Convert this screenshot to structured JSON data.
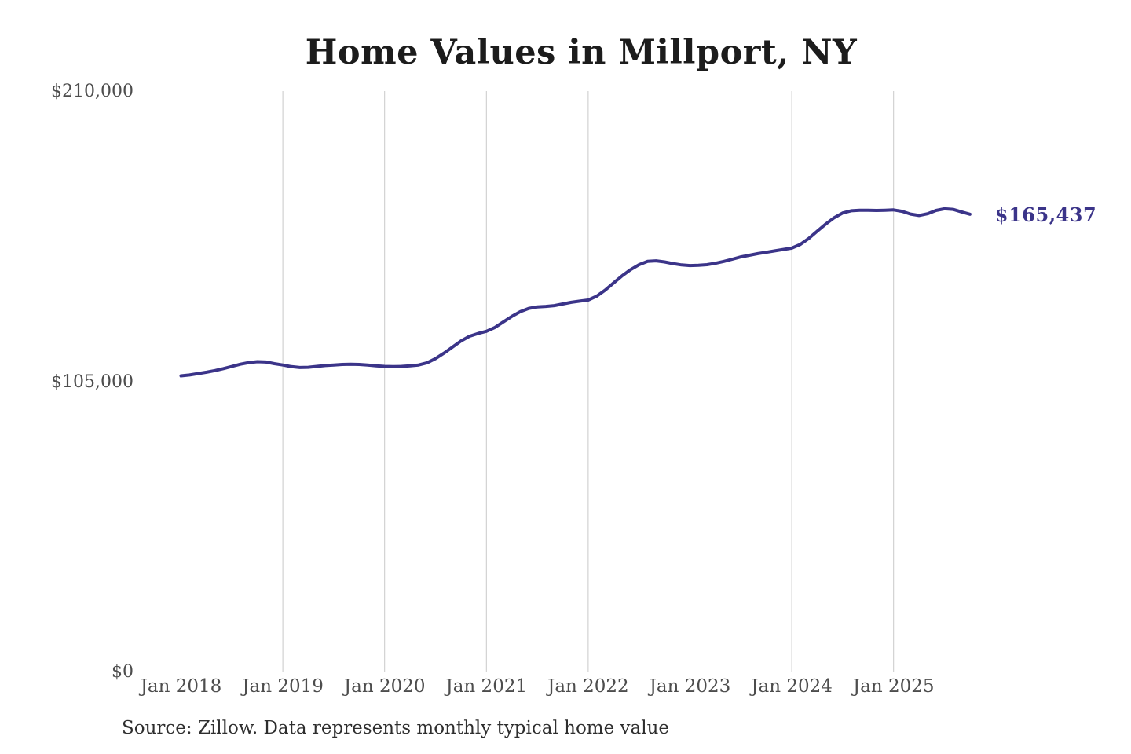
{
  "title": "Home Values in Millport, NY",
  "source_note": "Source: Zillow. Data represents monthly typical home value",
  "end_label": "$165,437",
  "colors": {
    "line": "#3b3489",
    "grid": "#c9c9c9",
    "axis_text": "#4d4d4d",
    "title_text": "#1c1c1c",
    "source_text": "#2e2e2e",
    "end_label_text": "#3b3489",
    "background": "#ffffff"
  },
  "y_axis": {
    "tick_labels": [
      "$0",
      "$105,000",
      "$210,000"
    ],
    "tick_values": [
      0,
      105000,
      210000
    ]
  },
  "x_axis": {
    "tick_labels": [
      "Jan 2018",
      "Jan 2019",
      "Jan 2020",
      "Jan 2021",
      "Jan 2022",
      "Jan 2023",
      "Jan 2024",
      "Jan 2025"
    ]
  },
  "chart_data": {
    "type": "line",
    "title": "Home Values in Millport, NY",
    "xlabel": "",
    "ylabel": "",
    "ylim": [
      0,
      210000
    ],
    "yticks": [
      0,
      105000,
      210000
    ],
    "xticks": [
      "Jan 2018",
      "Jan 2019",
      "Jan 2020",
      "Jan 2021",
      "Jan 2022",
      "Jan 2023",
      "Jan 2024",
      "Jan 2025"
    ],
    "grid": "vertical-only",
    "legend": "none",
    "series_name": "Typical home value (monthly)",
    "x_start_month": "2018-01",
    "x_end_month": "2025-10",
    "final_value": 165437,
    "values": [
      107000,
      107300,
      107800,
      108300,
      108900,
      109600,
      110400,
      111200,
      111800,
      112100,
      112000,
      111400,
      110900,
      110300,
      110000,
      110100,
      110400,
      110700,
      110900,
      111100,
      111200,
      111100,
      110900,
      110600,
      110400,
      110300,
      110400,
      110600,
      110900,
      111700,
      113200,
      115200,
      117400,
      119600,
      121300,
      122300,
      123100,
      124500,
      126500,
      128500,
      130200,
      131400,
      131900,
      132100,
      132400,
      133000,
      133600,
      134000,
      134400,
      135800,
      138000,
      140600,
      143200,
      145400,
      147200,
      148400,
      148600,
      148200,
      147600,
      147100,
      146900,
      147000,
      147200,
      147700,
      148400,
      149200,
      150000,
      150600,
      151200,
      151700,
      152200,
      152700,
      153200,
      154500,
      156700,
      159300,
      161900,
      164200,
      165900,
      166700,
      166900,
      166900,
      166800,
      166900,
      167000,
      166500,
      165500,
      165000,
      165600,
      166800,
      167400,
      167200,
      166300,
      165437
    ]
  }
}
